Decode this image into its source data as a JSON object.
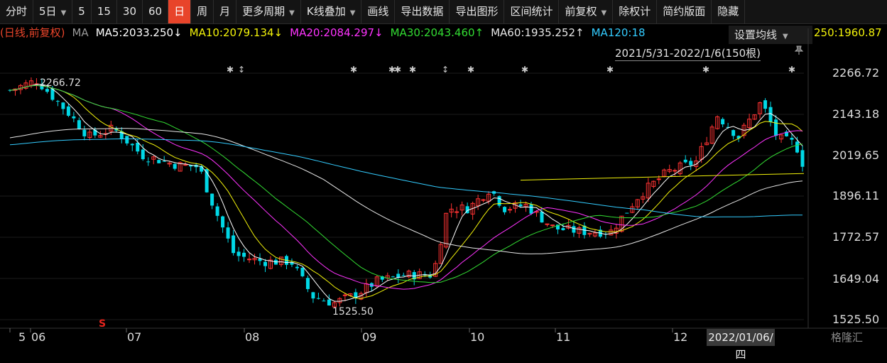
{
  "toolbar": {
    "items": [
      "分时",
      "5日",
      "5",
      "15",
      "30",
      "60",
      "日",
      "周",
      "月",
      "更多周期",
      "K线叠加",
      "画线",
      "导出数据",
      "导出图形",
      "区间统计",
      "前复权",
      "除权计",
      "简约版面",
      "隐藏"
    ],
    "active_index": 6
  },
  "info": {
    "mode": "(日线,前复权)",
    "ma_label": "MA",
    "ma5": "MA5:2033.250↓",
    "ma10": "MA10:2079.134↓",
    "ma20": "MA20:2084.297↓",
    "ma30": "MA30:2043.460↑",
    "ma60": "MA60:1935.252↑",
    "ma120": "MA120:18",
    "ma_tail": "250:1960.87",
    "ma_panel_label": "设置均线",
    "date_range": "2021/5/31-2022/1/6(150根)"
  },
  "colors": {
    "up": "#ff3333",
    "down": "#00d8e6",
    "ma5": "#ffffff",
    "ma10": "#f2f20a",
    "ma20": "#ff33ff",
    "ma30": "#33dd33",
    "ma60": "#e6e6e6",
    "ma120": "#33ccff",
    "ma250": "#f2f20a"
  },
  "chart_data": {
    "type": "candlestick",
    "y_ticks": [
      "2266.72",
      "2143.18",
      "2019.65",
      "1896.11",
      "1772.57",
      "1649.04",
      "1525.50"
    ],
    "ylim": [
      1525.5,
      2266.72
    ],
    "x_ticks": [
      "5",
      "06",
      "07",
      "08",
      "09",
      "10",
      "11",
      "12"
    ],
    "max_label": "2266.72",
    "min_label": "1525.50",
    "current_date": "2022/01/06/四"
  },
  "watermark": "格隆汇"
}
